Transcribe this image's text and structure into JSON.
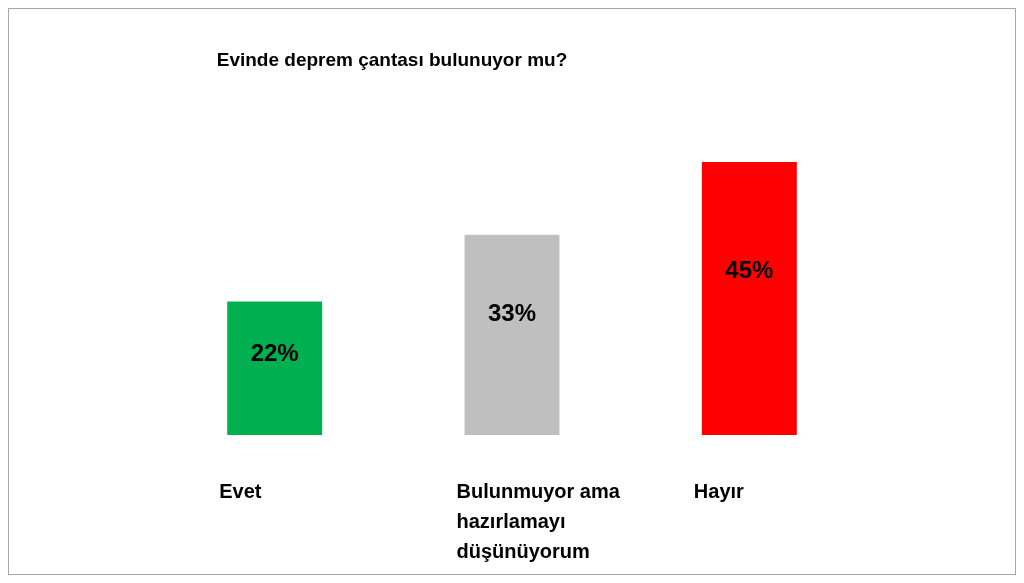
{
  "chart_data": {
    "type": "bar",
    "title": "Evinde deprem çantası bulunuyor mu?",
    "categories": [
      "Evet",
      "Bulunmuyor ama hazırlamayı düşünüyorum",
      "Hayır"
    ],
    "values": [
      22,
      33,
      45
    ],
    "colors": [
      "#00b050",
      "#bfbfbf",
      "#ff0000"
    ],
    "value_labels": [
      "22%",
      "33%",
      "45%"
    ],
    "grid": false
  }
}
